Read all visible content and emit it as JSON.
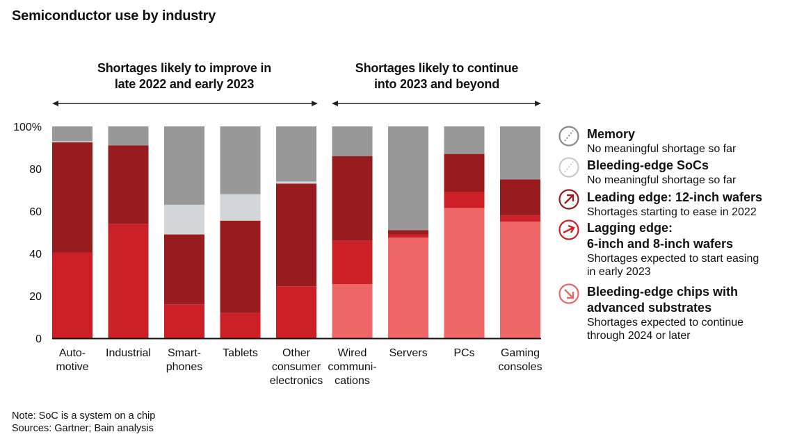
{
  "chart_data": {
    "type": "bar",
    "stacked": true,
    "title": "Semiconductor use by industry",
    "xlabel": "",
    "ylabel": "",
    "ylim": [
      0,
      100
    ],
    "yticks": [
      0,
      20,
      40,
      60,
      80,
      100
    ],
    "ytick_labels": [
      "0",
      "20",
      "40",
      "60",
      "80",
      "100%"
    ],
    "grid": false,
    "legend_position": "right",
    "categories": [
      "Auto-\nmotive",
      "Industrial",
      "Smart-\nphones",
      "Tablets",
      "Other\nconsumer\nelectronics",
      "Wired\ncommuni-\ncations",
      "Servers",
      "PCs",
      "Gaming\nconsoles"
    ],
    "series": [
      {
        "name": "Bleeding-edge chips with advanced substrates",
        "color": "#ee6667",
        "values": [
          0,
          0,
          0,
          0,
          0,
          25.5,
          47.5,
          61.5,
          55
        ]
      },
      {
        "name": "Lagging edge: 6-inch and 8-inch wafers",
        "color": "#cd2026",
        "values": [
          40.5,
          54,
          16,
          12,
          24.5,
          20.5,
          1.5,
          7.5,
          3
        ]
      },
      {
        "name": "Leading edge: 12-inch wafers",
        "color": "#981b1e",
        "values": [
          52,
          37,
          33,
          43.5,
          48.5,
          40,
          2,
          18,
          17
        ]
      },
      {
        "name": "Bleeding-edge SoCs",
        "color": "#d2d6d8",
        "values": [
          0.5,
          0,
          14,
          12.5,
          1,
          0,
          0,
          0,
          0
        ]
      },
      {
        "name": "Memory",
        "color": "#989898",
        "values": [
          7,
          9,
          37,
          32,
          26,
          14,
          49,
          13,
          25
        ]
      }
    ],
    "annotations": [
      {
        "text": "Shortages likely to improve in\nlate 2022 and early 2023",
        "spans": [
          "Auto-\nmotive",
          "Other\nconsumer\nelectronics"
        ]
      },
      {
        "text": "Shortages likely to continue\ninto 2023 and beyond",
        "spans": [
          "Wired\ncommuni-\ncations",
          "Gaming\nconsoles"
        ]
      }
    ]
  },
  "header": {
    "title": "Semiconductor use by industry"
  },
  "groups": [
    {
      "line1": "Shortages likely to improve in",
      "line2": "late 2022 and early 2023"
    },
    {
      "line1": "Shortages likely to continue",
      "line2": "into 2023 and beyond"
    }
  ],
  "categories": [
    {
      "lines": [
        "Auto-",
        "motive"
      ]
    },
    {
      "lines": [
        "Industrial"
      ]
    },
    {
      "lines": [
        "Smart-",
        "phones"
      ]
    },
    {
      "lines": [
        "Tablets"
      ]
    },
    {
      "lines": [
        "Other",
        "consumer",
        "electronics"
      ]
    },
    {
      "lines": [
        "Wired",
        "communi-",
        "cations"
      ]
    },
    {
      "lines": [
        "Servers"
      ]
    },
    {
      "lines": [
        "PCs"
      ]
    },
    {
      "lines": [
        "Gaming",
        "consoles"
      ]
    }
  ],
  "legend": [
    {
      "name_lines": [
        "Memory"
      ],
      "desc_lines": [
        "No meaningful shortage so far"
      ],
      "icon": "dashed-diagonal-circle-icon",
      "color": "#8a8a8a"
    },
    {
      "name_lines": [
        "Bleeding-edge SoCs"
      ],
      "desc_lines": [
        "No meaningful shortage so far"
      ],
      "icon": "dashed-diagonal-circle-icon",
      "color": "#c8cccd"
    },
    {
      "name_lines": [
        "Leading edge: 12-inch wafers"
      ],
      "desc_lines": [
        "Shortages starting to ease in 2022"
      ],
      "icon": "arrow-up-right-circle-icon",
      "color": "#981b1e"
    },
    {
      "name_lines": [
        "Lagging edge:",
        "6-inch and 8-inch wafers"
      ],
      "desc_lines": [
        "Shortages expected to start easing",
        "in early 2023"
      ],
      "icon": "arrow-right-circle-icon",
      "color": "#cd2026"
    },
    {
      "name_lines": [
        "Bleeding-edge chips with",
        "advanced substrates"
      ],
      "desc_lines": [
        "Shortages expected to continue",
        "through 2024 or later"
      ],
      "icon": "arrow-down-right-circle-icon",
      "color": "#e8686a"
    }
  ],
  "footer": {
    "note": "Note: SoC is a system on a chip",
    "sources": "Sources: Gartner; Bain analysis"
  }
}
